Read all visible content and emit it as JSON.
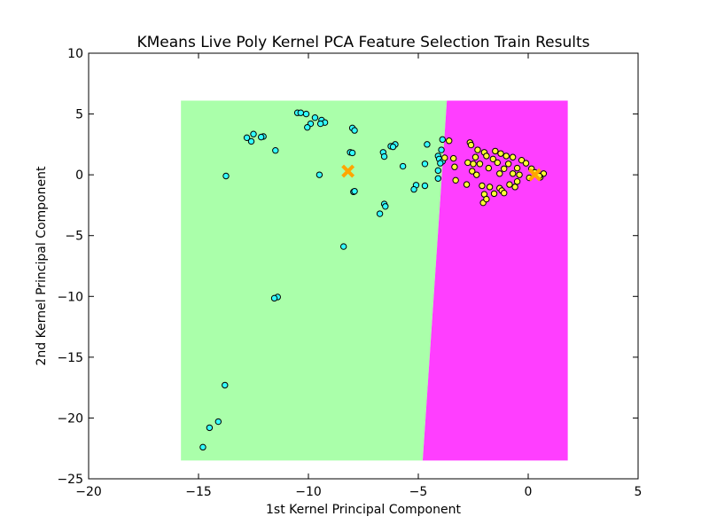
{
  "chart_data": {
    "type": "scatter",
    "title": "KMeans Live Poly Kernel PCA Feature Selection Train Results",
    "xlabel": "1st Kernel Principal Component",
    "ylabel": "2nd Kernel Principal Component",
    "xlim": [
      -20,
      5
    ],
    "ylim": [
      -25,
      10
    ],
    "x_ticks": [
      -20,
      -15,
      -10,
      -5,
      0,
      5
    ],
    "x_tick_labels": [
      "−20",
      "−15",
      "−10",
      "−5",
      "0",
      "5"
    ],
    "y_ticks": [
      -25,
      -20,
      -15,
      -10,
      -5,
      0,
      5,
      10
    ],
    "y_tick_labels": [
      "−25",
      "−20",
      "−15",
      "−10",
      "−5",
      "0",
      "5",
      "10"
    ],
    "grid": false,
    "decision_regions": {
      "x_range": [
        -15.8,
        1.8
      ],
      "y_range": [
        -23.5,
        6.1
      ],
      "boundary": {
        "top_x": -3.7,
        "bottom_x": -4.8
      },
      "colors": [
        "#aaffaa",
        "#ff3eff"
      ]
    },
    "series": [
      {
        "color": "#33ffff",
        "points": [
          [
            -10.5,
            5.1
          ],
          [
            -10.35,
            5.1
          ],
          [
            -10.1,
            5.0
          ],
          [
            -9.7,
            4.7
          ],
          [
            -9.4,
            4.5
          ],
          [
            -9.25,
            4.3
          ],
          [
            -9.45,
            4.2
          ],
          [
            -9.9,
            4.2
          ],
          [
            -10.05,
            3.9
          ],
          [
            -8.0,
            3.85
          ],
          [
            -7.9,
            3.65
          ],
          [
            -12.5,
            3.35
          ],
          [
            -12.05,
            3.15
          ],
          [
            -12.15,
            3.1
          ],
          [
            -12.8,
            3.05
          ],
          [
            -12.6,
            2.75
          ],
          [
            -3.9,
            2.9
          ],
          [
            -4.6,
            2.5
          ],
          [
            -6.05,
            2.5
          ],
          [
            -6.25,
            2.35
          ],
          [
            -6.15,
            2.3
          ],
          [
            -3.95,
            2.05
          ],
          [
            -11.5,
            2.0
          ],
          [
            -8.1,
            1.85
          ],
          [
            -8.0,
            1.8
          ],
          [
            -6.6,
            1.85
          ],
          [
            -4.1,
            1.55
          ],
          [
            -6.55,
            1.5
          ],
          [
            -4.05,
            1.3
          ],
          [
            -3.9,
            1.1
          ],
          [
            -4.0,
            0.95
          ],
          [
            -4.7,
            0.9
          ],
          [
            -5.7,
            0.7
          ],
          [
            -4.1,
            0.35
          ],
          [
            -9.5,
            0.0
          ],
          [
            -13.75,
            -0.1
          ],
          [
            -4.1,
            -0.3
          ],
          [
            -5.1,
            -0.85
          ],
          [
            -4.7,
            -0.9
          ],
          [
            -5.2,
            -1.2
          ],
          [
            -7.95,
            -1.4
          ],
          [
            -7.9,
            -1.35
          ],
          [
            -6.55,
            -2.4
          ],
          [
            -6.5,
            -2.6
          ],
          [
            -6.75,
            -3.2
          ],
          [
            -8.4,
            -5.9
          ],
          [
            -11.4,
            -10.05
          ],
          [
            -11.55,
            -10.15
          ],
          [
            -13.8,
            -17.3
          ],
          [
            -14.1,
            -20.3
          ],
          [
            -14.5,
            -20.8
          ],
          [
            -14.8,
            -22.4
          ]
        ]
      },
      {
        "color": "#ffff33",
        "points": [
          [
            -3.6,
            2.8
          ],
          [
            -2.65,
            2.65
          ],
          [
            -2.6,
            2.45
          ],
          [
            -2.3,
            2.05
          ],
          [
            -1.5,
            1.95
          ],
          [
            -2.0,
            1.85
          ],
          [
            -1.25,
            1.75
          ],
          [
            -1.9,
            1.55
          ],
          [
            -2.4,
            1.45
          ],
          [
            -3.4,
            1.35
          ],
          [
            -3.8,
            1.4
          ],
          [
            -1.0,
            1.55
          ],
          [
            -0.7,
            1.45
          ],
          [
            -1.6,
            1.3
          ],
          [
            -0.3,
            1.2
          ],
          [
            -2.75,
            1.0
          ],
          [
            -2.2,
            0.9
          ],
          [
            -1.4,
            1.0
          ],
          [
            -0.9,
            0.9
          ],
          [
            -0.1,
            0.95
          ],
          [
            -3.35,
            0.65
          ],
          [
            -2.55,
            0.3
          ],
          [
            -1.8,
            0.55
          ],
          [
            -1.1,
            0.5
          ],
          [
            -0.5,
            0.55
          ],
          [
            0.15,
            0.5
          ],
          [
            -2.35,
            0.0
          ],
          [
            -1.3,
            0.1
          ],
          [
            -0.7,
            0.1
          ],
          [
            0.3,
            0.2
          ],
          [
            0.7,
            0.1
          ],
          [
            -3.3,
            -0.45
          ],
          [
            -2.8,
            -0.8
          ],
          [
            -2.1,
            -0.9
          ],
          [
            -1.75,
            -1.0
          ],
          [
            -1.3,
            -1.1
          ],
          [
            -0.85,
            -0.8
          ],
          [
            -0.5,
            -0.55
          ],
          [
            0.05,
            -0.25
          ],
          [
            0.55,
            -0.2
          ],
          [
            -2.0,
            -1.6
          ],
          [
            -1.55,
            -1.55
          ],
          [
            -1.2,
            -1.3
          ],
          [
            -0.6,
            -1.0
          ],
          [
            -2.05,
            -2.3
          ],
          [
            -1.9,
            -2.0
          ],
          [
            -1.1,
            -1.5
          ],
          [
            -2.5,
            0.9
          ],
          [
            -0.4,
            0.0
          ],
          [
            0.5,
            -0.1
          ]
        ]
      }
    ],
    "centroids": {
      "color": "#ffa500",
      "points": [
        [
          -8.2,
          0.3
        ],
        [
          0.3,
          0.0
        ]
      ]
    }
  }
}
